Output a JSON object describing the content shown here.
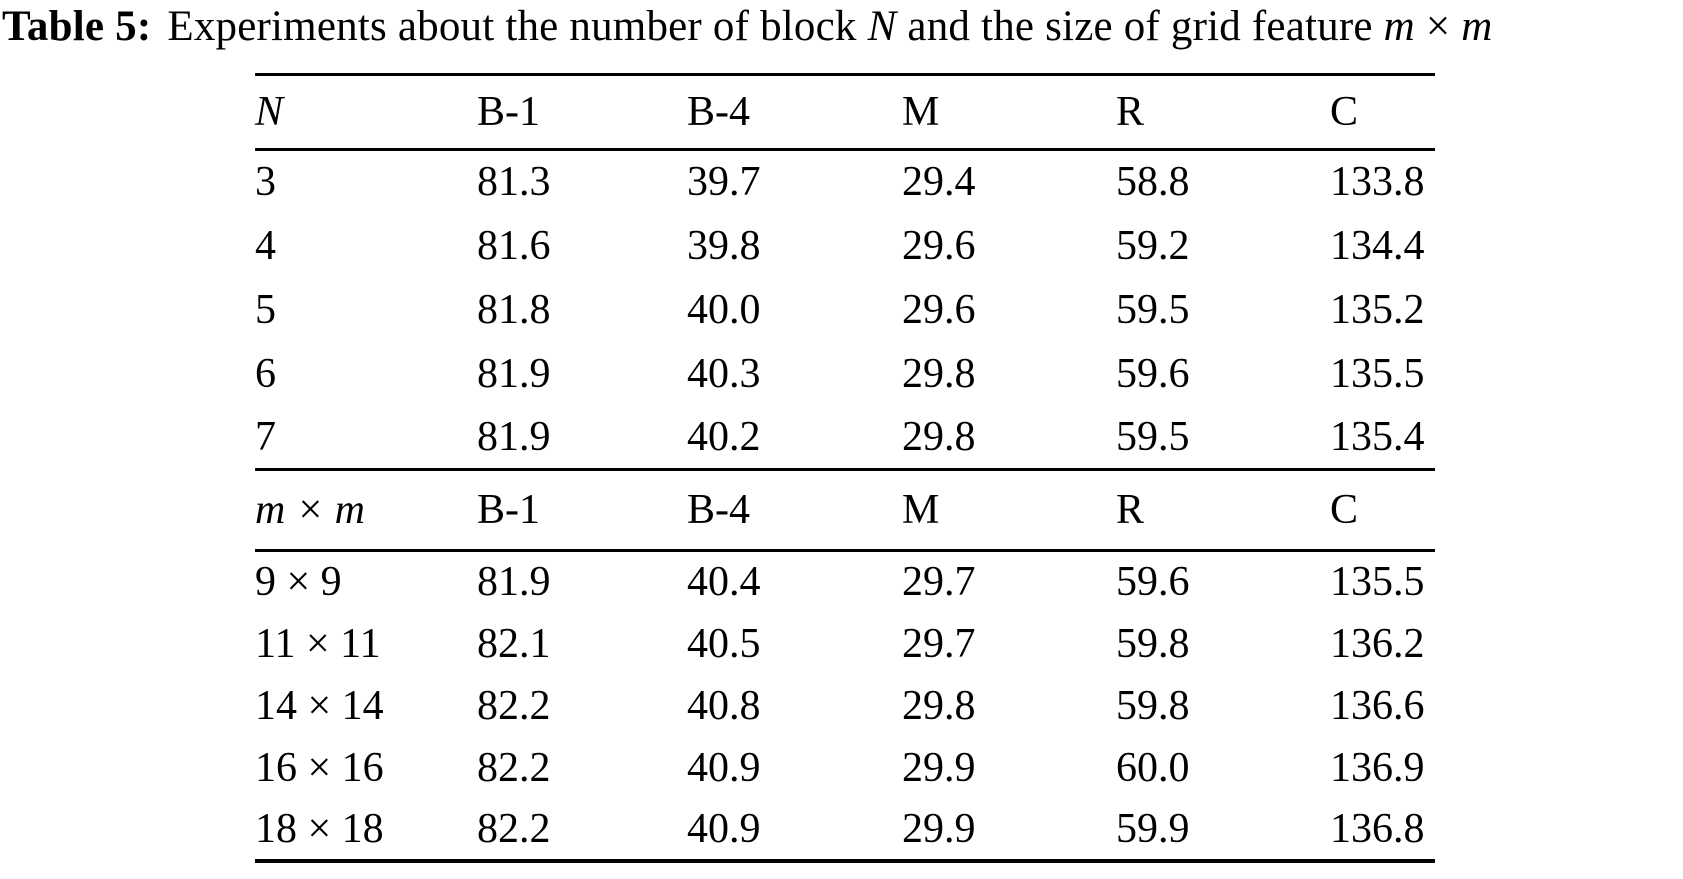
{
  "page": {
    "background_color": "#ffffff",
    "text_color": "#000000"
  },
  "caption": {
    "label": "Table 5:",
    "part1": "Experiments about the number of block",
    "var_n": "N",
    "part2": "and the size of grid feature",
    "var_m1": "m",
    "times": "×",
    "var_m2": "m"
  },
  "table": {
    "sections": [
      {
        "key_header": "N",
        "metric_headers": [
          "B-1",
          "B-4",
          "M",
          "R",
          "C"
        ],
        "rows": [
          {
            "key": "3",
            "values": [
              "81.3",
              "39.7",
              "29.4",
              "58.8",
              "133.8"
            ]
          },
          {
            "key": "4",
            "values": [
              "81.6",
              "39.8",
              "29.6",
              "59.2",
              "134.4"
            ]
          },
          {
            "key": "5",
            "values": [
              "81.8",
              "40.0",
              "29.6",
              "59.5",
              "135.2"
            ]
          },
          {
            "key": "6",
            "values": [
              "81.9",
              "40.3",
              "29.8",
              "59.6",
              "135.5"
            ]
          },
          {
            "key": "7",
            "values": [
              "81.9",
              "40.2",
              "29.8",
              "59.5",
              "135.4"
            ]
          }
        ]
      },
      {
        "key_header": "m × m",
        "metric_headers": [
          "B-1",
          "B-4",
          "M",
          "R",
          "C"
        ],
        "rows": [
          {
            "key": "9 × 9",
            "values": [
              "81.9",
              "40.4",
              "29.7",
              "59.6",
              "135.5"
            ]
          },
          {
            "key": "11 × 11",
            "values": [
              "82.1",
              "40.5",
              "29.7",
              "59.8",
              "136.2"
            ]
          },
          {
            "key": "14 × 14",
            "values": [
              "82.2",
              "40.8",
              "29.8",
              "59.8",
              "136.6"
            ]
          },
          {
            "key": "16 × 16",
            "values": [
              "82.2",
              "40.9",
              "29.9",
              "60.0",
              "136.9"
            ]
          },
          {
            "key": "18 × 18",
            "values": [
              "82.2",
              "40.9",
              "29.9",
              "59.9",
              "136.8"
            ]
          }
        ]
      }
    ]
  }
}
